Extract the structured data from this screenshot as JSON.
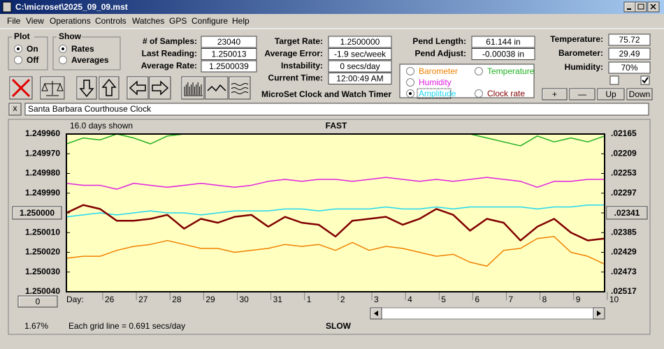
{
  "window": {
    "title": "C:\\microset\\2025_09_09.mst"
  },
  "menu": [
    "File",
    "View",
    "Operations",
    "Controls",
    "Watches",
    "GPS",
    "Configure",
    "Help"
  ],
  "plot_group": {
    "title": "Plot",
    "options": [
      "On",
      "Off"
    ],
    "selected": 0
  },
  "show_group": {
    "title": "Show",
    "options": [
      "Rates",
      "Averages"
    ],
    "selected": 0
  },
  "stats": {
    "labels": [
      "# of Samples:",
      "Last Reading:",
      "Average Rate:"
    ],
    "values": [
      "23040",
      "1.250013",
      "1.2500039"
    ]
  },
  "timing": {
    "labels": [
      "Target Rate:",
      "Average Error:",
      "Instability:",
      "Current Time:"
    ],
    "values": [
      "1.2500000",
      "-1.9 sec/week",
      "0 secs/day",
      "12:00:49 AM"
    ]
  },
  "pendulum": {
    "labels": [
      "Pend Length:",
      "Pend Adjust:"
    ],
    "values": [
      "61.144 in",
      "-0.00038 in"
    ]
  },
  "environment": {
    "labels": [
      "Temperature:",
      "Barometer:",
      "Humidity:"
    ],
    "values": [
      "75.72",
      "29.49",
      "70%"
    ]
  },
  "checkboxes": [
    false,
    true
  ],
  "app_title": "MicroSet Clock and Watch Timer",
  "buttons": [
    "+",
    "—",
    "Up",
    "Down"
  ],
  "close_button": "x",
  "clock_name": "Santa Barbara Courthouse Clock",
  "chart_data": {
    "type": "line",
    "days_shown": "16.0 days shown",
    "fast_label": "FAST",
    "slow_label": "SLOW",
    "x_label": "Day:",
    "scroll_value": "0",
    "zoom": "1.67%",
    "note": "Each grid line = 0.691 secs/day",
    "legend_selected": 3,
    "y_inverted": true,
    "x": [
      0,
      0.5,
      1,
      1.5,
      2,
      2.5,
      3,
      3.5,
      4,
      4.5,
      5,
      5.5,
      6,
      6.5,
      7,
      7.5,
      8,
      8.5,
      9,
      9.5,
      10,
      10.5,
      11,
      11.5,
      12,
      12.5,
      13,
      13.5,
      14,
      14.5,
      15,
      15.5,
      16
    ],
    "xlim": [
      0,
      16
    ],
    "xticks": [
      {
        "value": 1.08,
        "label": "26"
      },
      {
        "value": 2.08,
        "label": "27"
      },
      {
        "value": 3.08,
        "label": "28"
      },
      {
        "value": 4.08,
        "label": "29"
      },
      {
        "value": 5.08,
        "label": "30"
      },
      {
        "value": 6.08,
        "label": "31"
      },
      {
        "value": 7.08,
        "label": "1"
      },
      {
        "value": 8.08,
        "label": "2"
      },
      {
        "value": 9.08,
        "label": "3"
      },
      {
        "value": 10.08,
        "label": "4"
      },
      {
        "value": 11.08,
        "label": "5"
      },
      {
        "value": 12.08,
        "label": "6"
      },
      {
        "value": 13.08,
        "label": "7"
      },
      {
        "value": 14.08,
        "label": "8"
      },
      {
        "value": 15.08,
        "label": "9"
      },
      {
        "value": 16.08,
        "label": "10"
      }
    ],
    "ylim": [
      1.24996,
      1.25004
    ],
    "yticks": [
      {
        "value": 1.24996,
        "label": "1.249960"
      },
      {
        "value": 1.24997,
        "label": "1.249970"
      },
      {
        "value": 1.24998,
        "label": "1.249980"
      },
      {
        "value": 1.24999,
        "label": "1.249990"
      },
      {
        "value": 1.25,
        "label": "1.250000"
      },
      {
        "value": 1.25001,
        "label": "1.250010"
      },
      {
        "value": 1.25002,
        "label": "1.250020"
      },
      {
        "value": 1.25003,
        "label": "1.250030"
      },
      {
        "value": 1.25004,
        "label": "1.250040"
      }
    ],
    "y2lim": [
      0.02165,
      0.02517
    ],
    "y2ticks": [
      {
        "value": 0.02165,
        "label": ".02165"
      },
      {
        "value": 0.02209,
        "label": ".02209"
      },
      {
        "value": 0.02253,
        "label": ".02253"
      },
      {
        "value": 0.02297,
        "label": ".02297"
      },
      {
        "value": 0.02341,
        "label": ".02341"
      },
      {
        "value": 0.02385,
        "label": ".02385"
      },
      {
        "value": 0.02429,
        "label": ".02429"
      },
      {
        "value": 0.02473,
        "label": ".02473"
      },
      {
        "value": 0.02517,
        "label": ".02517"
      }
    ],
    "series": [
      {
        "name": "Barometer",
        "color": "#f08000",
        "values": [
          1.250023,
          1.250022,
          1.250022,
          1.250019,
          1.250017,
          1.250016,
          1.250014,
          1.250016,
          1.250018,
          1.250018,
          1.25002,
          1.250019,
          1.250018,
          1.250016,
          1.250017,
          1.250016,
          1.250019,
          1.250015,
          1.250019,
          1.250017,
          1.250018,
          1.25002,
          1.250022,
          1.250021,
          1.250025,
          1.250027,
          1.250019,
          1.250018,
          1.250013,
          1.250012,
          1.25002,
          1.250022,
          1.250026
        ]
      },
      {
        "name": "Temperature",
        "color": "#20b020",
        "values": [
          1.249965,
          1.249962,
          1.249963,
          1.24996,
          1.249962,
          1.249965,
          1.249961,
          1.24996,
          1.24996,
          1.24996,
          1.24996,
          1.24996,
          1.24996,
          1.24996,
          1.24996,
          1.24996,
          1.24996,
          1.24996,
          1.24996,
          1.24996,
          1.24996,
          1.24996,
          1.24996,
          1.24996,
          1.24996,
          1.249962,
          1.249964,
          1.249966,
          1.249961,
          1.249964,
          1.249962,
          1.249964,
          1.249961
        ]
      },
      {
        "name": "Humidity",
        "color": "#e020e0",
        "values": [
          1.249985,
          1.249986,
          1.249986,
          1.249988,
          1.249985,
          1.249986,
          1.249987,
          1.249986,
          1.249985,
          1.249986,
          1.249987,
          1.249986,
          1.249984,
          1.249983,
          1.249984,
          1.249983,
          1.249983,
          1.249984,
          1.249983,
          1.249982,
          1.249983,
          1.249984,
          1.249983,
          1.249984,
          1.249983,
          1.249982,
          1.249983,
          1.249984,
          1.249987,
          1.249984,
          1.249984,
          1.249983,
          1.249983
        ]
      },
      {
        "name": "Amplitude",
        "color": "#20d8f0",
        "values": [
          1.250002,
          1.250001,
          1.25,
          1.250001,
          1.25,
          1.249999,
          1.25,
          1.25,
          1.250001,
          1.25,
          1.249999,
          1.249999,
          1.249999,
          1.249998,
          1.249998,
          1.249999,
          1.249998,
          1.249998,
          1.249998,
          1.249997,
          1.249998,
          1.249998,
          1.249997,
          1.249998,
          1.249997,
          1.249997,
          1.249997,
          1.249997,
          1.249998,
          1.249997,
          1.249997,
          1.249996,
          1.249996
        ]
      },
      {
        "name": "Clock rate",
        "color": "#800000",
        "values": [
          1.25,
          1.249996,
          1.249998,
          1.250004,
          1.250004,
          1.250003,
          1.250001,
          1.250008,
          1.250003,
          1.250005,
          1.250002,
          1.250001,
          1.250007,
          1.250002,
          1.250005,
          1.250006,
          1.250012,
          1.250004,
          1.250003,
          1.250002,
          1.250006,
          1.250003,
          1.249998,
          1.250001,
          1.250009,
          1.250003,
          1.250005,
          1.250014,
          1.250007,
          1.250003,
          1.25001,
          1.250014,
          1.250013
        ]
      }
    ]
  }
}
